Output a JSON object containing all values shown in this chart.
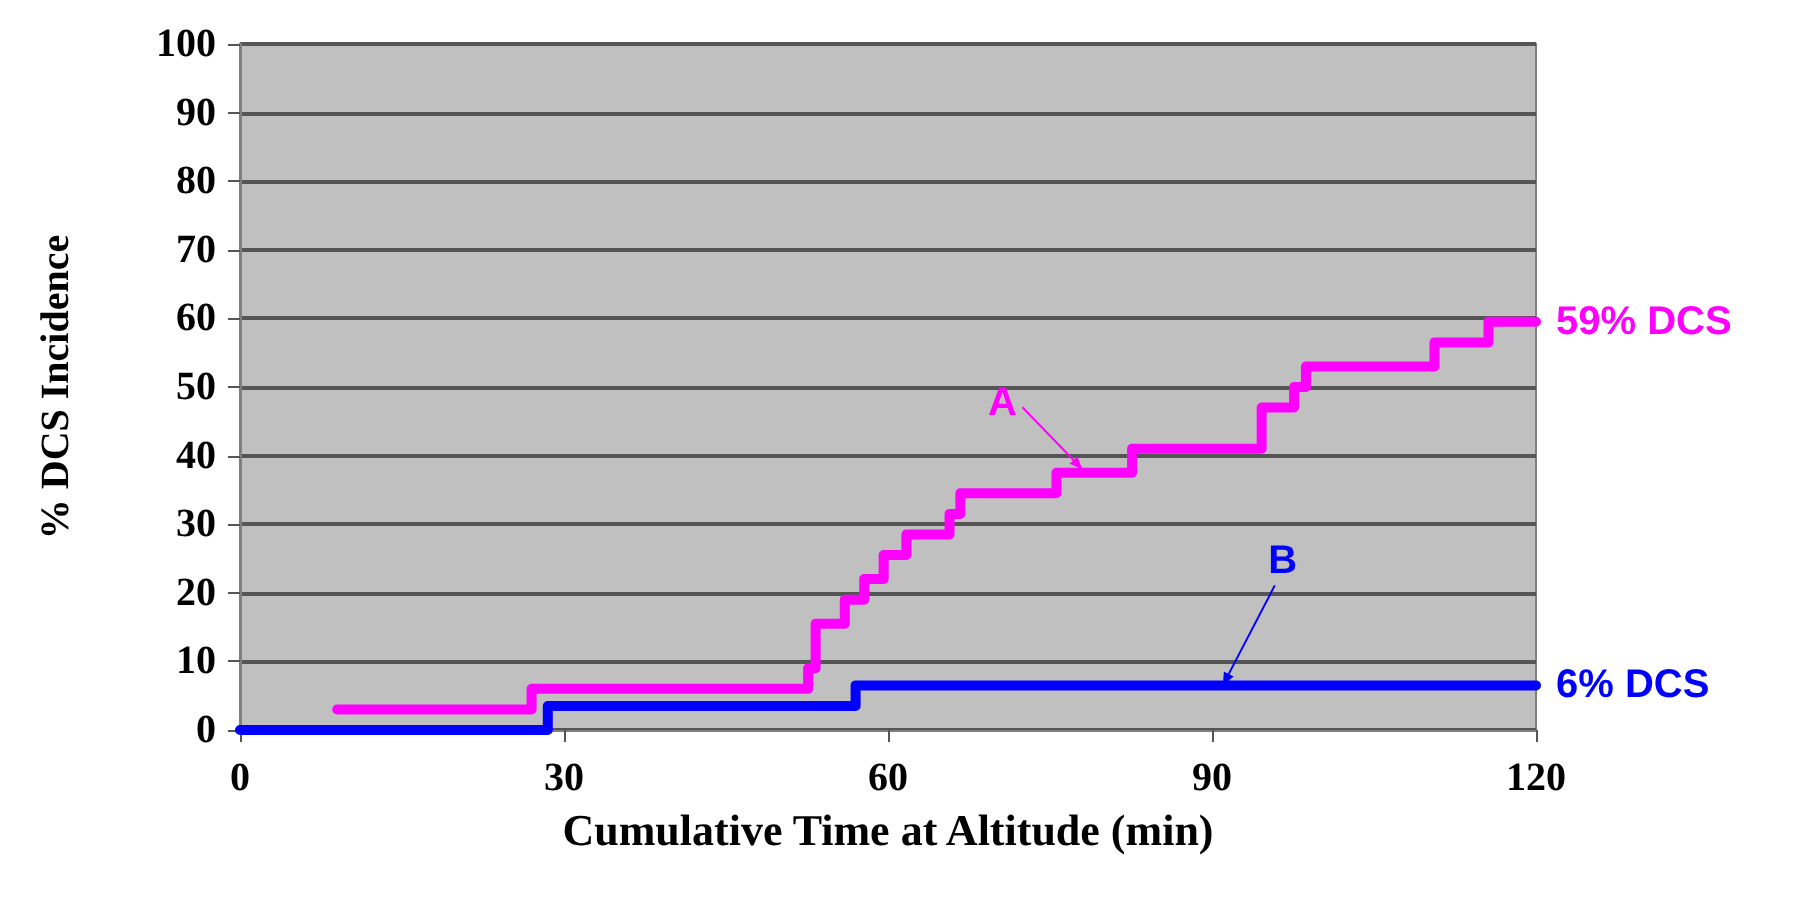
{
  "chart_data": {
    "type": "step",
    "xlabel": "Cumulative Time at Altitude (min)",
    "ylabel": "% DCS Incidence",
    "xlim": [
      0,
      120
    ],
    "xticks": [
      0,
      30,
      60,
      90,
      120
    ],
    "ylim": [
      0,
      100
    ],
    "yticks": [
      0,
      10,
      20,
      30,
      40,
      50,
      60,
      70,
      80,
      90,
      100
    ],
    "grid": "y",
    "marker": "none",
    "line_style": "solid",
    "series": [
      {
        "color": "#ff00ff",
        "x": [
          9,
          27,
          52.6,
          53.3,
          56,
          57.8,
          59.6,
          61.7,
          65.7,
          66.7,
          75.6,
          82.6,
          94.6,
          97.6,
          98.7,
          110.6,
          115.6,
          120
        ],
        "values": [
          3,
          6,
          9,
          15.5,
          19,
          22,
          25.5,
          28.5,
          31.5,
          34.5,
          37.5,
          41,
          47,
          50,
          53,
          56.5,
          59.5,
          59.5
        ]
      },
      {
        "color": "#0000ff",
        "x": [
          0,
          28.5,
          57,
          120
        ],
        "values": [
          0,
          3.5,
          6.5,
          6.5
        ]
      }
    ],
    "annotations": [
      {
        "text": "A",
        "x": 78,
        "y": 38
      },
      {
        "text": "B",
        "x": 91,
        "y": 6.5
      },
      {
        "text": "59% DCS",
        "x": 120,
        "y": 59.5
      },
      {
        "text": "6% DCS",
        "x": 120,
        "y": 6.5
      }
    ]
  }
}
